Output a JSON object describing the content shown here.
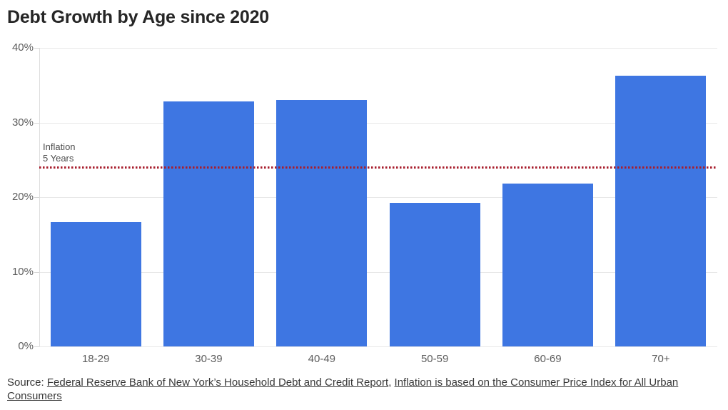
{
  "title": "Debt Growth by Age since 2020",
  "chart_data": {
    "type": "bar",
    "title": "Debt Growth by Age since 2020",
    "categories": [
      "18-29",
      "30-39",
      "40-49",
      "50-59",
      "60-69",
      "70+"
    ],
    "values": [
      16.7,
      32.8,
      33.0,
      19.2,
      21.8,
      36.3
    ],
    "xlabel": "",
    "ylabel": "",
    "ylim": [
      0,
      40
    ],
    "yticks": [
      {
        "value": 40,
        "label": "40%"
      },
      {
        "value": 30,
        "label": "30%"
      },
      {
        "value": 20,
        "label": "20%"
      },
      {
        "value": 10,
        "label": "10%"
      },
      {
        "value": 0,
        "label": "0%"
      }
    ],
    "grid": true,
    "legend": "none",
    "bar_color": "#3e76e2",
    "reference_line": {
      "value": 24,
      "label": "Inflation\n5 Years",
      "color": "#a81e2d",
      "style": "dotted"
    }
  },
  "footer": {
    "source_prefix": "Source: ",
    "link1": "Federal Reserve Bank of New York’s Household Debt and Credit Report",
    "separator": ", ",
    "link2": "Inflation is based on the Consumer Price Index for All Urban Consumers"
  }
}
